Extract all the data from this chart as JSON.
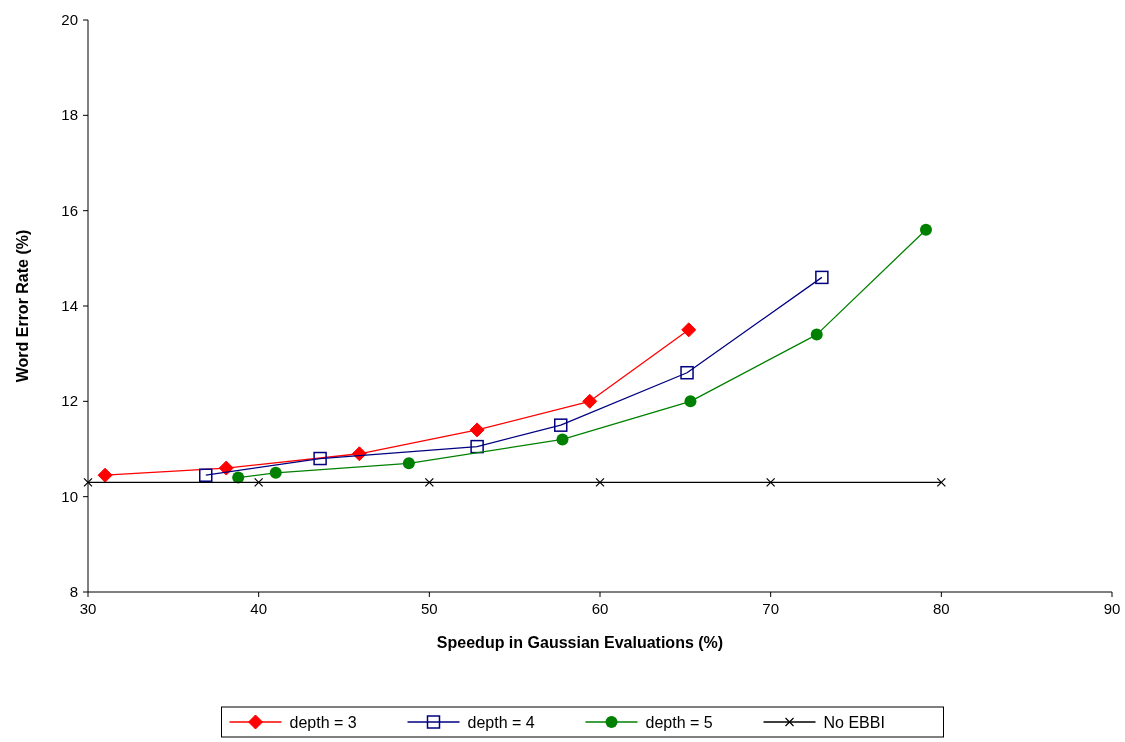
{
  "chart_data": {
    "type": "line",
    "xlabel": "Speedup in Gaussian Evaluations (%)",
    "ylabel": "Word Error Rate (%)",
    "xlim": [
      30,
      90
    ],
    "xticks": [
      30,
      40,
      50,
      60,
      70,
      80,
      90
    ],
    "ylim": [
      8,
      20
    ],
    "yticks": [
      8,
      10,
      12,
      14,
      16,
      18,
      20
    ],
    "grid": false,
    "legend": "bottom",
    "series": [
      {
        "name": "depth = 3",
        "color": "#ff0000",
        "marker": "diamond",
        "x": [
          31,
          38.1,
          45.9,
          52.8,
          59.4,
          65.2
        ],
        "values": [
          10.45,
          10.6,
          10.9,
          11.4,
          12.0,
          13.5
        ]
      },
      {
        "name": "depth = 4",
        "color": "#000080",
        "marker": "square",
        "x": [
          36.9,
          43.6,
          52.8,
          57.7,
          65.1,
          73.0
        ],
        "values": [
          10.45,
          10.8,
          11.05,
          11.5,
          12.6,
          14.6
        ]
      },
      {
        "name": "depth = 5",
        "color": "#008000",
        "marker": "circle",
        "x": [
          38.8,
          41,
          48.8,
          57.8,
          65.3,
          72.7,
          79.1
        ],
        "values": [
          10.4,
          10.5,
          10.7,
          11.2,
          12.0,
          13.4,
          15.6
        ]
      },
      {
        "name": "No EBBI",
        "color": "#000000",
        "marker": "cross",
        "x": [
          30,
          40,
          50,
          60,
          70,
          80
        ],
        "values": [
          10.3,
          10.3,
          10.3,
          10.3,
          10.3,
          10.3
        ]
      }
    ]
  }
}
